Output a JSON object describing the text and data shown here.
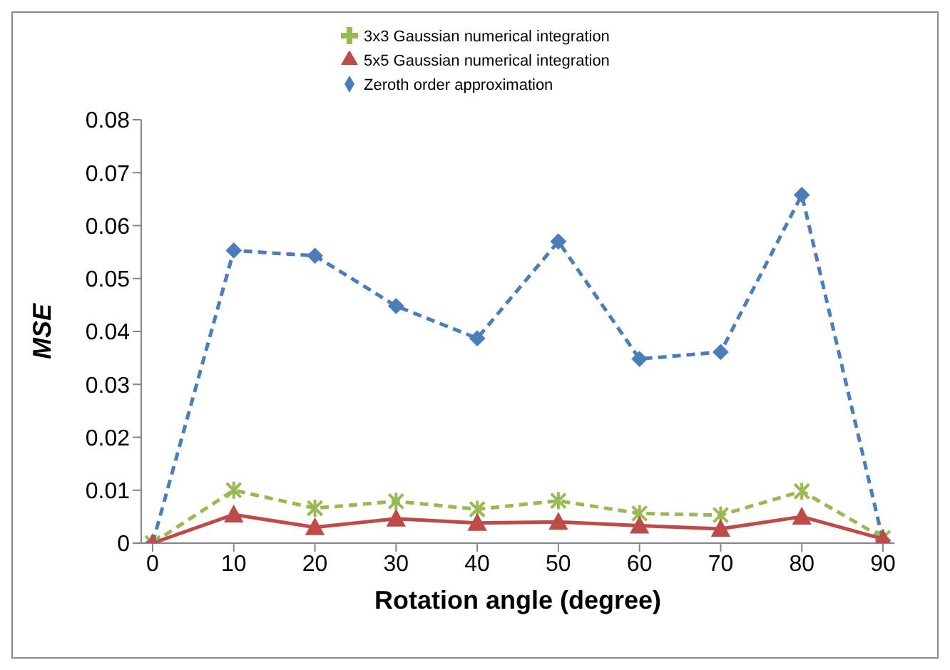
{
  "chart_data": {
    "type": "line",
    "xlabel": "Rotation angle (degree)",
    "ylabel": "MSE",
    "categories": [
      "0",
      "10",
      "20",
      "30",
      "40",
      "50",
      "60",
      "70",
      "80",
      "90"
    ],
    "series": [
      {
        "name": "Zeroth order approximation",
        "color": "#4a7ebb",
        "marker": "diamond",
        "line_style": "dashed",
        "values": [
          0,
          0.0553,
          0.0543,
          0.0448,
          0.0387,
          0.057,
          0.0348,
          0.0361,
          0.0658,
          0.0005
        ]
      },
      {
        "name": "3x3 Gaussian numerical integration",
        "color": "#98b954",
        "marker": "cross",
        "line_style": "dashed",
        "values": [
          0,
          0.01,
          0.0066,
          0.0079,
          0.0064,
          0.008,
          0.0056,
          0.0053,
          0.0098,
          0.001
        ]
      },
      {
        "name": "5x5 Gaussian numerical integration",
        "color": "#be4b48",
        "marker": "triangle",
        "line_style": "solid",
        "values": [
          0,
          0.0054,
          0.003,
          0.0046,
          0.0038,
          0.004,
          0.0033,
          0.0027,
          0.005,
          0.0008
        ]
      }
    ],
    "ylim": [
      0,
      0.08
    ],
    "yticks": [
      0,
      0.01,
      0.02,
      0.03,
      0.04,
      0.05,
      0.06,
      0.07,
      0.08
    ],
    "grid": false,
    "legend": "top"
  }
}
